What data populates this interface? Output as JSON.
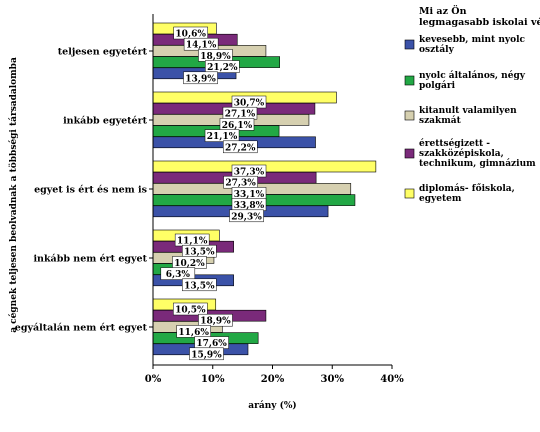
{
  "chart_data": {
    "type": "bar",
    "orientation": "horizontal",
    "categories": [
      "teljesen egyetért",
      "inkább egyetért",
      "egyet is ért és nem is",
      "inkább nem ért egyet",
      "egyáltalán nem ért egyet"
    ],
    "series": [
      {
        "name": "diplomás- főiskola, egyetem",
        "color": "#ffff66",
        "values": [
          10.6,
          30.7,
          37.3,
          11.1,
          10.5
        ],
        "labels": [
          "10,6%",
          "30,7%",
          "37,3%",
          "11,1%",
          "10,5%"
        ]
      },
      {
        "name": "érettségizett - szakközépiskola, technikum, gimnázium",
        "color": "#7a2a7a",
        "values": [
          14.1,
          27.1,
          27.3,
          13.5,
          18.9
        ],
        "labels": [
          "14,1%",
          "27,1%",
          "27,3%",
          "13,5%",
          "18,9%"
        ]
      },
      {
        "name": "kitanult valamilyen szakmát",
        "color": "#d6d0b0",
        "values": [
          18.9,
          26.1,
          33.1,
          10.2,
          11.6
        ],
        "labels": [
          "18,9%",
          "26,1%",
          "33,1%",
          "10,2%",
          "11,6%"
        ]
      },
      {
        "name": "nyolc általános, négy polgári",
        "color": "#22a845",
        "values": [
          21.2,
          21.1,
          33.8,
          6.3,
          17.6
        ],
        "labels": [
          "21,2%",
          "21,1%",
          "33,8%",
          "6,3%",
          "17,6%"
        ]
      },
      {
        "name": "kevesebb, mint nyolc osztály",
        "color": "#3b52a8",
        "values": [
          13.9,
          27.2,
          29.3,
          13.5,
          15.9
        ],
        "labels": [
          "13,9%",
          "27,2%",
          "29,3%",
          "13,5%",
          "15,9%"
        ]
      }
    ],
    "legend_order": [
      4,
      3,
      2,
      1,
      0
    ],
    "legend_title": "Mi az Ön legmagasabb iskolai végzettsége?",
    "xlabel": "arány (%)",
    "ylabel": "a cégnek teljesen beolvadnak a többségi társadalomba",
    "xlim": [
      0,
      40
    ],
    "xticks": [
      0,
      10,
      20,
      30,
      40
    ],
    "xtick_labels": [
      "0%",
      "10%",
      "20%",
      "30%",
      "40%"
    ],
    "grid": false,
    "legend_position": "right"
  }
}
